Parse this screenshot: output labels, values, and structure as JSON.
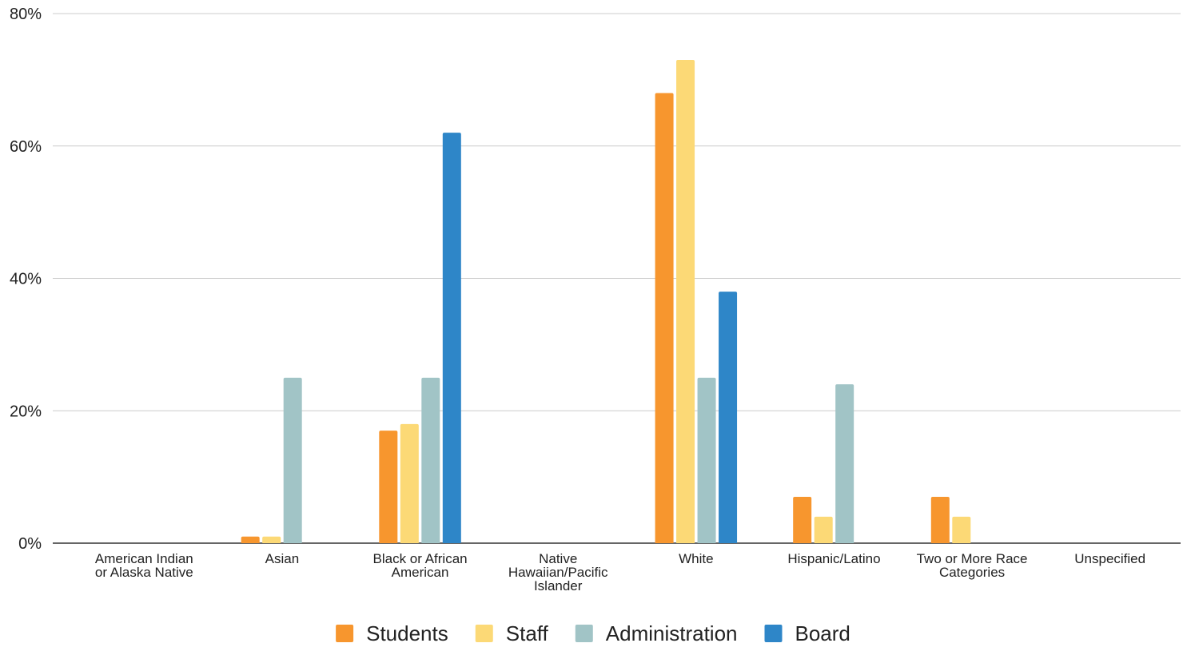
{
  "chart_data": {
    "type": "bar",
    "categories": [
      [
        "American Indian",
        "or Alaska Native"
      ],
      [
        "Asian"
      ],
      [
        "Black or African",
        "American"
      ],
      [
        "Native",
        "Hawaiian/Pacific",
        "Islander"
      ],
      [
        "White"
      ],
      [
        "Hispanic/Latino"
      ],
      [
        "Two or More Race",
        "Categories"
      ],
      [
        "Unspecified"
      ]
    ],
    "series": [
      {
        "name": "Students",
        "color": "#F7962E",
        "values": [
          0,
          1,
          17,
          0,
          68,
          7,
          7,
          0
        ]
      },
      {
        "name": "Staff",
        "color": "#FCD976",
        "values": [
          0,
          1,
          18,
          0,
          73,
          4,
          4,
          0
        ]
      },
      {
        "name": "Administration",
        "color": "#A1C4C6",
        "values": [
          0,
          25,
          25,
          0,
          25,
          24,
          0,
          0
        ]
      },
      {
        "name": "Board",
        "color": "#2E86C8",
        "values": [
          0,
          0,
          62,
          0,
          38,
          0,
          0,
          0
        ]
      }
    ],
    "ylim": [
      0,
      80
    ],
    "yticks": [
      0,
      20,
      40,
      60,
      80
    ],
    "ytick_labels": [
      "0%",
      "20%",
      "40%",
      "60%",
      "80%"
    ],
    "grid": true,
    "legend": "bottom"
  }
}
